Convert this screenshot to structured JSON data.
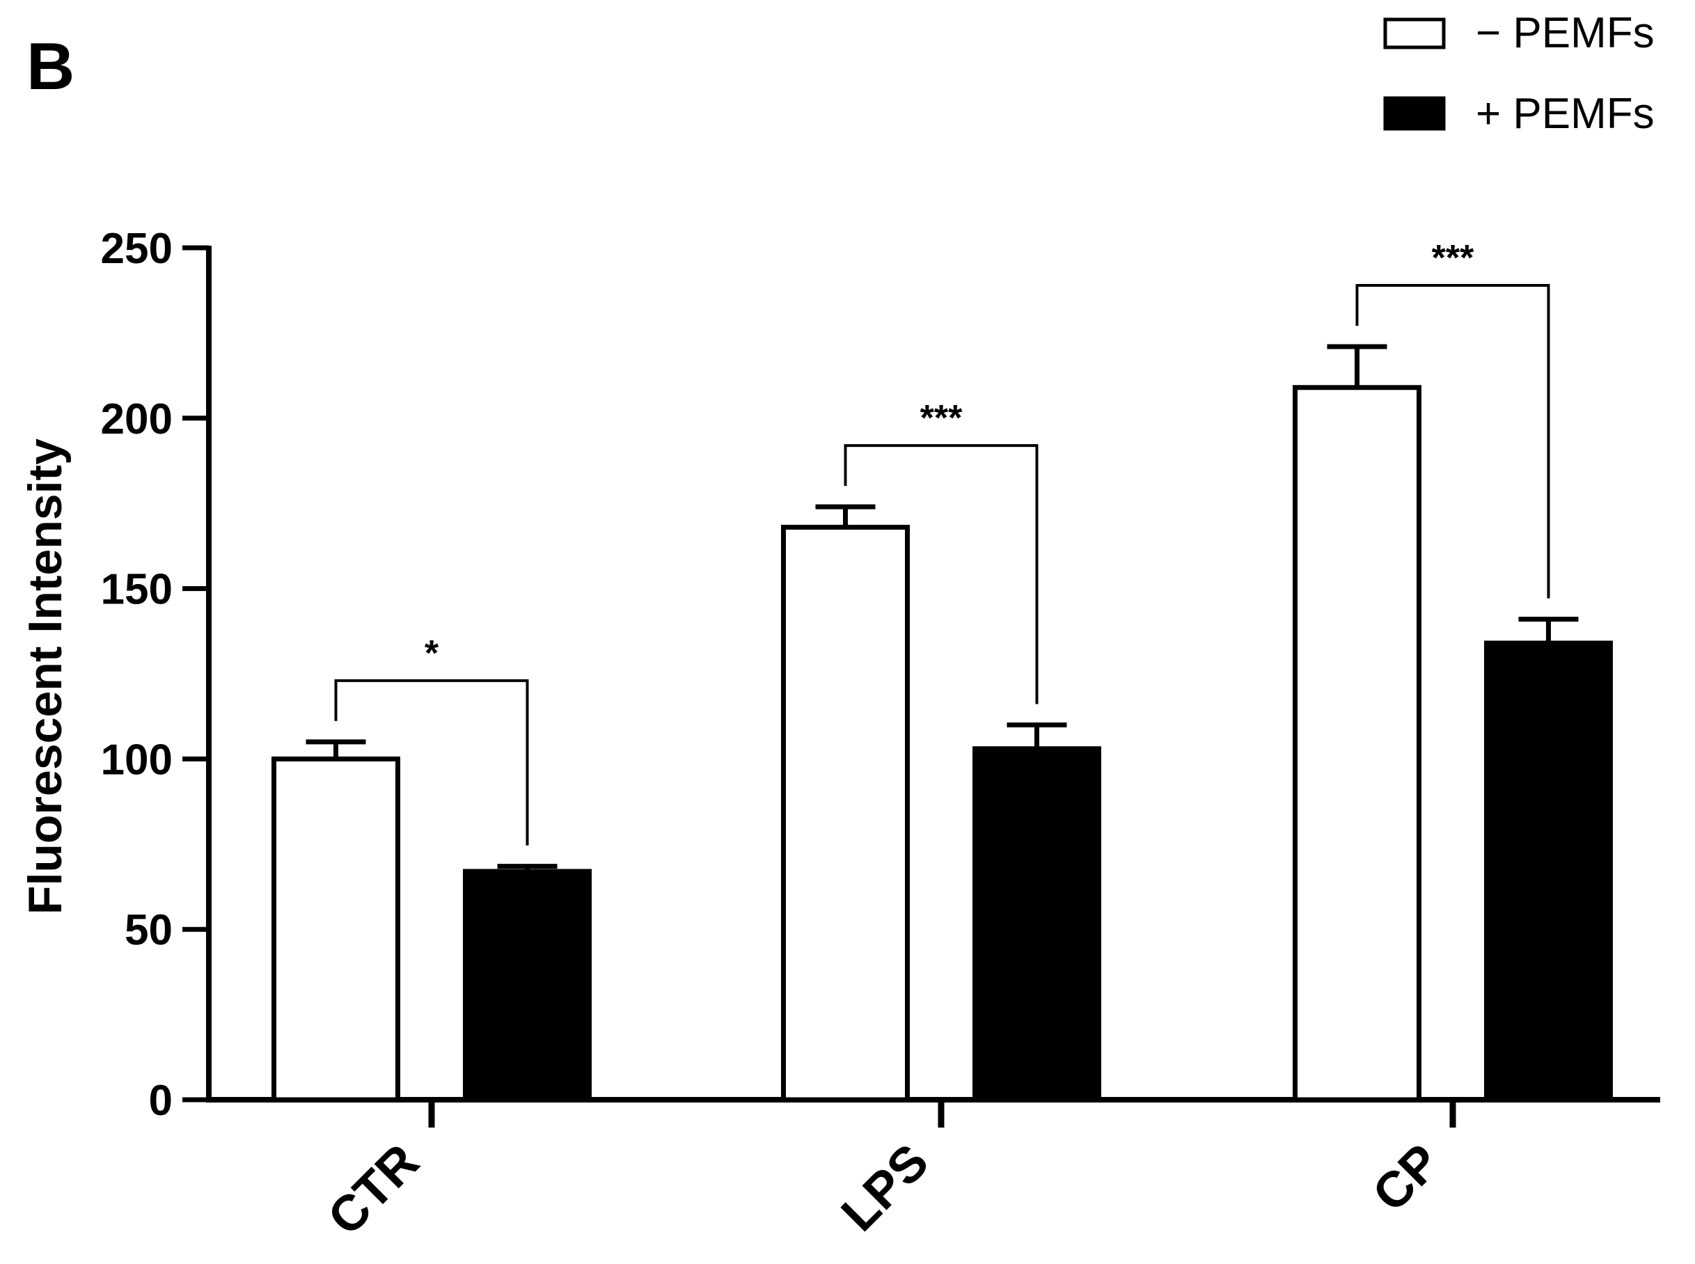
{
  "panel_label": "B",
  "chart_data": {
    "type": "bar",
    "title": "",
    "xlabel": "",
    "ylabel": "Fluorescent Intensity",
    "ylim": [
      0,
      250
    ],
    "yticks": [
      0,
      50,
      100,
      150,
      200,
      250
    ],
    "categories": [
      "CTR",
      "LPS",
      "CP"
    ],
    "series": [
      {
        "name": "− PEMFs",
        "values": [
          100,
          168,
          209
        ],
        "errors": [
          5,
          6,
          12
        ],
        "fill": "#ffffff",
        "stroke": "#000000"
      },
      {
        "name": "+ PEMFs",
        "values": [
          67,
          103,
          134
        ],
        "errors": [
          1.5,
          7,
          7
        ],
        "fill": "#000000",
        "stroke": "#000000"
      }
    ],
    "significance": [
      {
        "category": "CTR",
        "label": "*"
      },
      {
        "category": "LPS",
        "label": "***"
      },
      {
        "category": "CP",
        "label": "***"
      }
    ],
    "legend_position": "top-right",
    "grid": false
  }
}
